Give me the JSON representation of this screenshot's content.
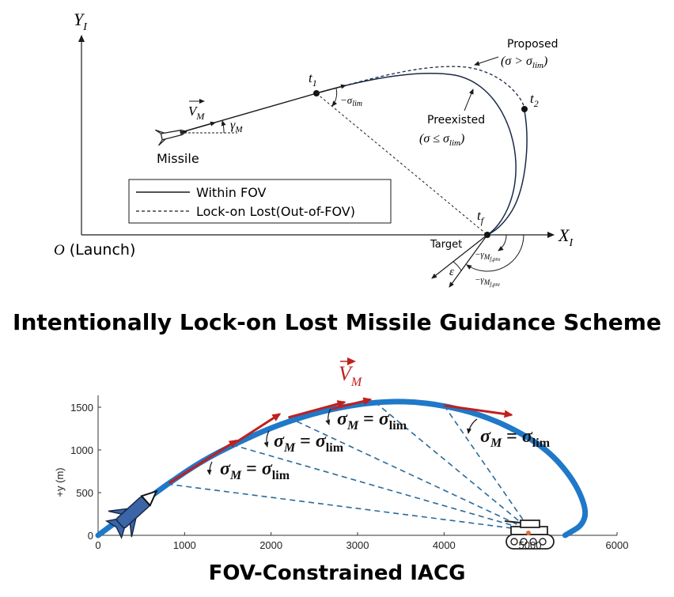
{
  "top": {
    "y_axis_label": "Y",
    "y_axis_sub": "I",
    "x_axis_label": "X",
    "x_axis_sub": "I",
    "origin_label": "O",
    "origin_note": "(Launch)",
    "missile_label": "Missile",
    "velocity_label": "V",
    "velocity_sub": "M",
    "gamma_label": "γ",
    "gamma_sub": "M",
    "t1_label": "t",
    "t1_sub": "1",
    "t2_label": "t",
    "t2_sub": "2",
    "tf_label": "t",
    "tf_sub": "f",
    "sigma_lim_label": "−σ",
    "sigma_lim_sub": "lim",
    "proposed_label": "Proposed",
    "proposed_cond": "(σ > σ",
    "proposed_cond_sub": "lim",
    "proposed_cond_end": ")",
    "preexisted_label": "Preexisted",
    "preexisted_cond": "(σ ≤ σ",
    "preexisted_cond_sub": "lim",
    "preexisted_cond_end": ")",
    "target_label": "Target",
    "gamma_pro_label": "−γ",
    "gamma_pro_sub": "M",
    "gamma_pro_subsub": "f,pro",
    "gamma_pre_label": "−γ",
    "gamma_pre_sub": "M",
    "gamma_pre_subsub": "f,pre",
    "epsilon_label": "ε",
    "legend": [
      {
        "style": "solid",
        "label": "Within FOV"
      },
      {
        "style": "dashed",
        "label": "Lock-on Lost(Out-of-FOV)"
      }
    ]
  },
  "top_caption": "Intentionally Lock-on Lost Missile Guidance Scheme",
  "bottom": {
    "velocity_label": "V",
    "velocity_sub": "M",
    "sigma_eq_labels": [
      {
        "lhs": "σ",
        "lhs_sub": "M",
        "eq": " = ",
        "rhs": "σ",
        "rhs_sub": "lim"
      },
      {
        "lhs": "σ",
        "lhs_sub": "M",
        "eq": " = ",
        "rhs": "σ",
        "rhs_sub": "lim"
      },
      {
        "lhs": "σ",
        "lhs_sub": "M",
        "eq": " = ",
        "rhs": "σ",
        "rhs_sub": "lim"
      },
      {
        "lhs": "σ",
        "lhs_sub": "M",
        "eq": " = ",
        "rhs": "σ",
        "rhs_sub": "lim"
      }
    ],
    "tank_label": "5000",
    "colors": {
      "trajectory": "#1f78c8",
      "velocity": "#c0201e",
      "los": "#2a6a9a"
    },
    "chart_data": {
      "type": "line",
      "xlabel": "",
      "ylabel": "+y (m)",
      "xlim": [
        0,
        6000
      ],
      "ylim": [
        0,
        1600
      ],
      "x_ticks": [
        "0",
        "1000",
        "2000",
        "3000",
        "4000",
        "5000",
        "6000"
      ],
      "y_ticks": [
        "0",
        "500",
        "1000",
        "1500"
      ],
      "series": [
        {
          "x": [
            0,
            400,
            800,
            1200,
            1600,
            2000,
            2400,
            2800,
            3200,
            3600,
            4000,
            4400,
            4800,
            5200,
            5500,
            5650,
            5600,
            5450,
            5400
          ],
          "y": [
            0,
            300,
            600,
            870,
            1080,
            1260,
            1400,
            1500,
            1560,
            1570,
            1520,
            1420,
            1250,
            1000,
            650,
            300,
            120,
            30,
            0
          ]
        }
      ]
    }
  },
  "bottom_caption": "FOV-Constrained IACG"
}
